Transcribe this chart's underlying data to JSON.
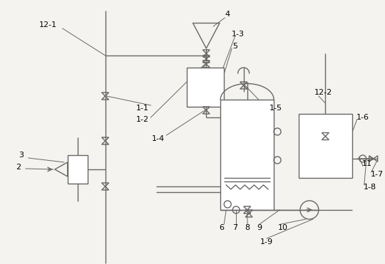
{
  "bg_color": "#f5f3ef",
  "line_color": "#666666",
  "line_width": 1.0,
  "fig_w": 5.4,
  "fig_h": 3.71,
  "dpi": 100
}
